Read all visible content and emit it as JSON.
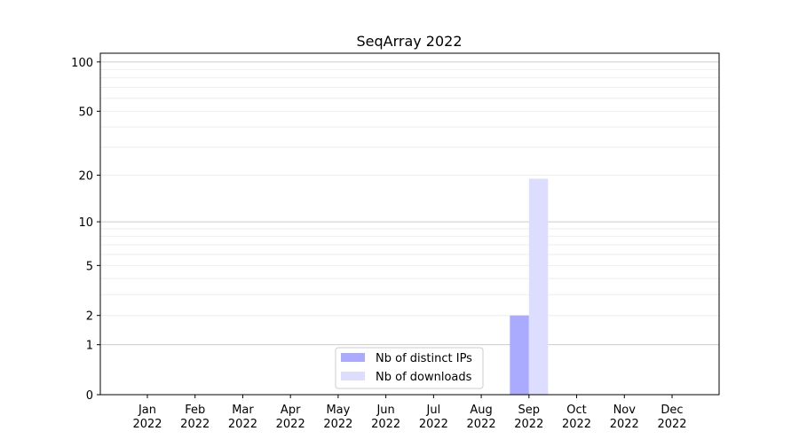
{
  "chart_data": {
    "type": "bar",
    "title": "SeqArray 2022",
    "xlabel": "",
    "ylabel": "",
    "yscale": "log10(1+y)",
    "ylim": [
      0,
      113
    ],
    "yticks": [
      0,
      1,
      2,
      5,
      10,
      20,
      50,
      100
    ],
    "grid": true,
    "legend_position": "bottom-center",
    "categories": [
      "Jan\n2022",
      "Feb\n2022",
      "Mar\n2022",
      "Apr\n2022",
      "May\n2022",
      "Jun\n2022",
      "Jul\n2022",
      "Aug\n2022",
      "Sep\n2022",
      "Oct\n2022",
      "Nov\n2022",
      "Dec\n2022"
    ],
    "series": [
      {
        "name": "Nb of distinct IPs",
        "color": "#aaaaff",
        "values": [
          0,
          0,
          0,
          0,
          0,
          0,
          0,
          0,
          2,
          0,
          0,
          0
        ]
      },
      {
        "name": "Nb of downloads",
        "color": "#ddddff",
        "values": [
          0,
          0,
          0,
          0,
          0,
          0,
          0,
          0,
          19,
          0,
          0,
          0
        ]
      }
    ]
  }
}
